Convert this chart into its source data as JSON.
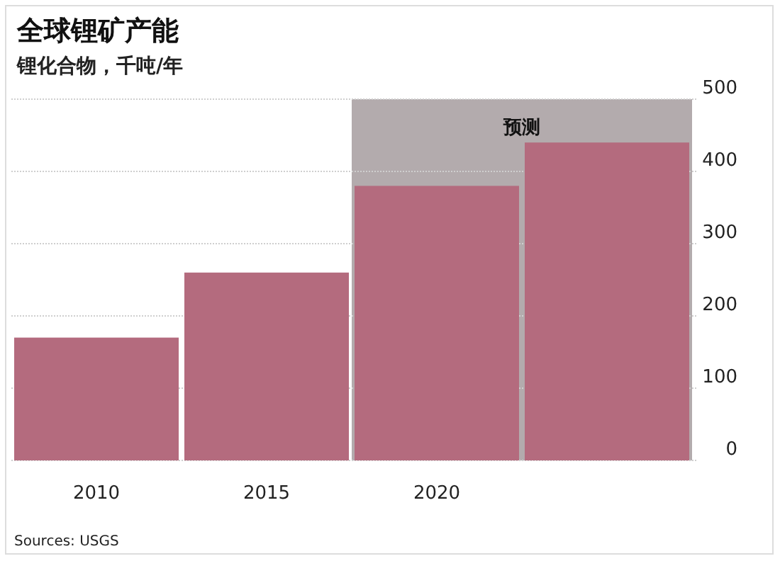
{
  "chart_data": {
    "type": "bar",
    "title": "全球锂矿产能",
    "subtitle": "锂化合物，千吨/年",
    "x": [
      2010,
      2015,
      2020,
      2025
    ],
    "values": [
      170,
      260,
      380,
      440
    ],
    "color": "#b46b7e",
    "xlim": [
      2007.5,
      2027.5
    ],
    "xticks": [
      2010,
      2015,
      2020
    ],
    "ylim": [
      0,
      500
    ],
    "yticks": [
      0,
      100,
      200,
      300,
      400,
      500
    ],
    "grid": "y",
    "bands": [
      {
        "axis": "x",
        "from": 2017.5,
        "to": 2027.5,
        "label": "预测",
        "color": "#b3abad"
      }
    ],
    "annotations": [
      "Sources: USGS"
    ]
  }
}
